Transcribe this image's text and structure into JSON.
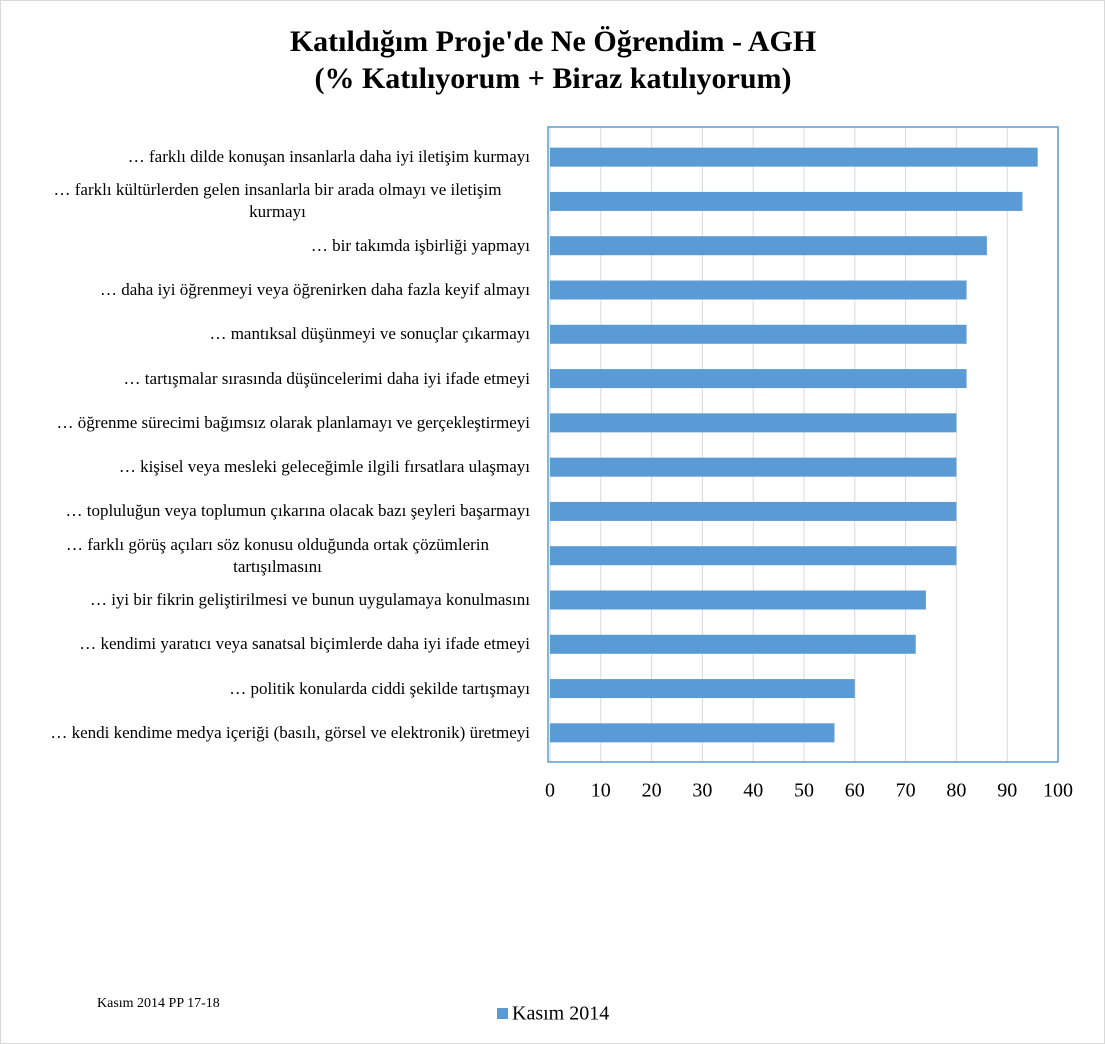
{
  "chart_data": {
    "type": "bar",
    "orientation": "horizontal",
    "title": "Katıldığım Proje'de Ne Öğrendim - AGH",
    "subtitle": "(% Katılıyorum + Biraz katılıyorum)",
    "categories": [
      "… farklı dilde konuşan insanlarla daha iyi iletişim kurmayı",
      "… farklı kültürlerden gelen insanlarla bir arada olmayı ve iletişim kurmayı",
      "… bir takımda işbirliği yapmayı",
      "… daha iyi öğrenmeyi veya öğrenirken daha fazla keyif almayı",
      "… mantıksal düşünmeyi ve sonuçlar çıkarmayı",
      "… tartışmalar sırasında düşüncelerimi daha iyi ifade etmeyi",
      "… öğrenme sürecimi bağımsız olarak planlamayı ve gerçekleştirmeyi",
      "… kişisel veya mesleki geleceğimle ilgili fırsatlara ulaşmayı",
      "… topluluğun veya toplumun çıkarına olacak bazı şeyleri başarmayı",
      "… farklı görüş açıları söz konusu olduğunda ortak çözümlerin tartışılmasını",
      "… iyi bir fikrin geliştirilmesi ve bunun uygulamaya konulmasını",
      "… kendimi yaratıcı veya sanatsal biçimlerde daha iyi ifade etmeyi",
      "… politik konularda ciddi şekilde tartışmayı",
      "… kendi kendime medya içeriği (basılı, görsel ve elektronik) üretmeyi"
    ],
    "series": [
      {
        "name": "Kasım 2014",
        "color": "#5b9bd5",
        "values": [
          96,
          93,
          86,
          82,
          82,
          82,
          80,
          80,
          80,
          80,
          74,
          72,
          60,
          56
        ]
      }
    ],
    "xlim": [
      0,
      100
    ],
    "xticks": [
      0,
      10,
      20,
      30,
      40,
      50,
      60,
      70,
      80,
      90,
      100
    ],
    "grid": true,
    "legend": "bottom",
    "annotations": [
      "Kasım 2014 PP 17-18"
    ]
  }
}
